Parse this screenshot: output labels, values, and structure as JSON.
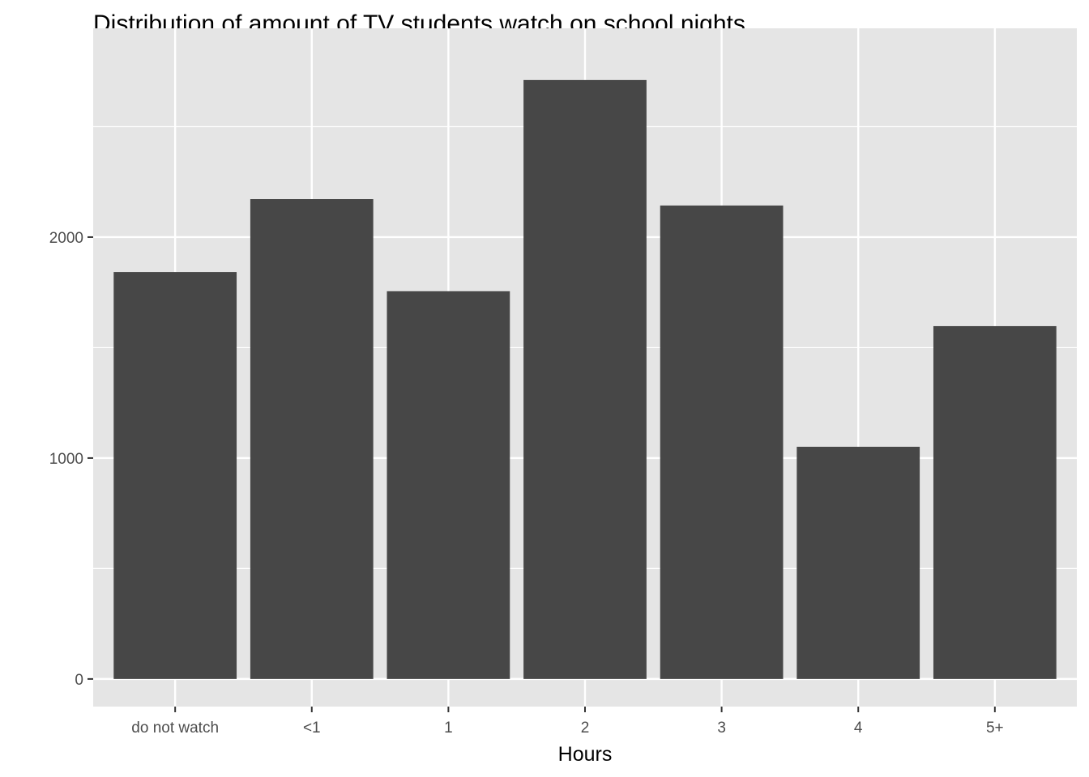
{
  "chart_data": {
    "type": "bar",
    "title": "Distribution of amount of TV students watch on school nights",
    "xlabel": "Hours",
    "ylabel": "",
    "categories": [
      "do not watch",
      "<1",
      "1",
      "2",
      "3",
      "4",
      "5+"
    ],
    "values": [
      1842,
      2172,
      1755,
      2711,
      2143,
      1051,
      1597
    ],
    "ylim": [
      -125,
      2945
    ],
    "yticks": [
      0,
      1000,
      2000
    ],
    "ytick_labels": [
      "0",
      "1000",
      "2000"
    ],
    "grid": true,
    "colors": {
      "bar": "#474747",
      "panel": "#e5e5e5",
      "grid": "#ffffff"
    }
  }
}
